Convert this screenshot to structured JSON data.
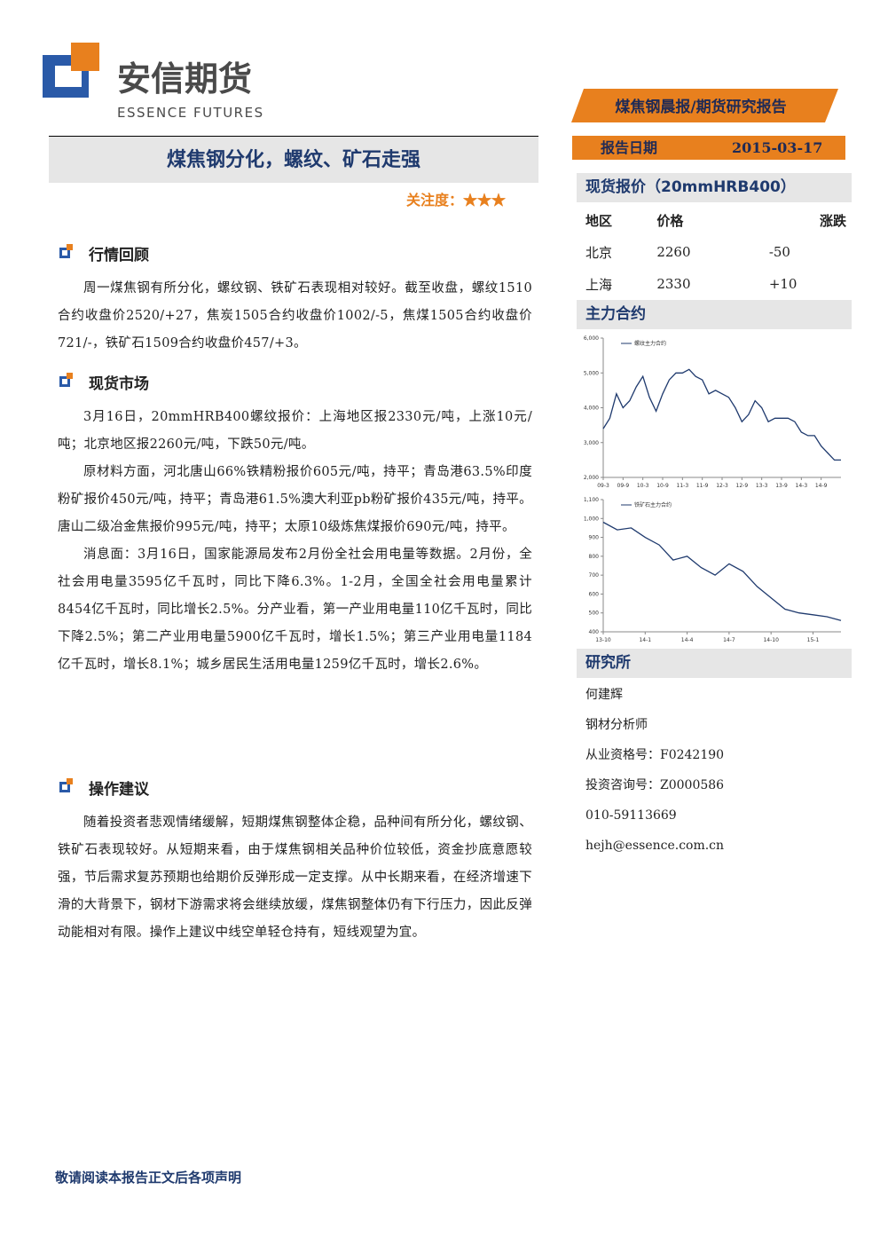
{
  "header": {
    "logo_cn": "安信期货",
    "logo_en": "ESSENCE FUTURES",
    "report_type": "煤焦钢晨报/期货研究报告",
    "date_label": "报告日期",
    "date": "2015-03-17"
  },
  "title": "煤焦钢分化，螺纹、矿石走强",
  "attention": {
    "label": "关注度：",
    "stars": "★★★"
  },
  "sections": [
    {
      "heading": "行情回顾",
      "paragraphs": [
        "周一煤焦钢有所分化，螺纹钢、铁矿石表现相对较好。截至收盘，螺纹1510合约收盘价2520/+27，焦炭1505合约收盘价1002/-5，焦煤1505合约收盘价721/-，铁矿石1509合约收盘价457/+3。"
      ]
    },
    {
      "heading": "现货市场",
      "paragraphs": [
        "3月16日，20mmHRB400螺纹报价：上海地区报2330元/吨，上涨10元/吨；北京地区报2260元/吨，下跌50元/吨。",
        "原材料方面，河北唐山66%铁精粉报价605元/吨，持平；青岛港63.5%印度粉矿报价450元/吨，持平；青岛港61.5%澳大利亚pb粉矿报价435元/吨，持平。唐山二级冶金焦报价995元/吨，持平；太原10级炼焦煤报价690元/吨，持平。",
        "消息面：3月16日，国家能源局发布2月份全社会用电量等数据。2月份，全社会用电量3595亿千瓦时，同比下降6.3%。1-2月，全国全社会用电量累计8454亿千瓦时，同比增长2.5%。分产业看，第一产业用电量110亿千瓦时，同比下降2.5%；第二产业用电量5900亿千瓦时，增长1.5%；第三产业用电量1184亿千瓦时，增长8.1%；城乡居民生活用电量1259亿千瓦时，增长2.6%。"
      ]
    },
    {
      "heading": "操作建议",
      "paragraphs": [
        "随着投资者悲观情绪缓解，短期煤焦钢整体企稳，品种间有所分化，螺纹钢、铁矿石表现较好。从短期来看，由于煤焦钢相关品种价位较低，资金抄底意愿较强，节后需求复苏预期也给期价反弹形成一定支撑。从中长期来看，在经济增速下滑的大背景下，钢材下游需求将会继续放缓，煤焦钢整体仍有下行压力，因此反弹动能相对有限。操作上建议中线空单轻仓持有，短线观望为宜。"
      ]
    }
  ],
  "sidebar": {
    "spot": {
      "title": "现货报价（20mmHRB400）",
      "header": [
        "地区",
        "价格",
        "涨跌"
      ],
      "rows": [
        [
          "北京",
          "2260",
          "-50"
        ],
        [
          "上海",
          "2330",
          "+10"
        ]
      ]
    },
    "main_contract": {
      "title": "主力合约",
      "charts": [
        {
          "type": "line",
          "categories": [
            "09-3",
            null,
            null,
            "09-9",
            null,
            null,
            "10-3",
            null,
            null,
            "10-9",
            null,
            null,
            "11-3",
            null,
            null,
            "11-9",
            null,
            null,
            "12-3",
            null,
            null,
            "12-9",
            null,
            null,
            "13-3",
            null,
            null,
            "13-9",
            null,
            null,
            "14-3",
            null,
            null,
            "14-9",
            null,
            null,
            null
          ],
          "series": [
            {
              "name": "螺纹主力合约",
              "color": "#1f3a6e",
              "values": [
                3400,
                3700,
                4400,
                4000,
                4200,
                4600,
                4900,
                4300,
                3900,
                4400,
                4800,
                5000,
                5000,
                5100,
                4900,
                4800,
                4400,
                4500,
                4400,
                4300,
                4000,
                3600,
                3800,
                4200,
                4000,
                3600,
                3700,
                3700,
                3700,
                3600,
                3300,
                3200,
                3200,
                2900,
                2700,
                2500,
                2500
              ]
            }
          ],
          "ylim": [
            2000,
            6000
          ],
          "yticks": [
            {
              "value": 2000,
              "label": "2,000"
            },
            {
              "value": 3000,
              "label": "3,000"
            },
            {
              "value": 4000,
              "label": "4,000"
            },
            {
              "value": 5000,
              "label": "5,000"
            },
            {
              "value": 6000,
              "label": "6,000"
            }
          ]
        },
        {
          "type": "line",
          "categories": [
            "13-10",
            null,
            null,
            "14-1",
            null,
            null,
            "14-4",
            null,
            null,
            "14-7",
            null,
            null,
            "14-10",
            null,
            null,
            "15-1",
            null,
            null
          ],
          "series": [
            {
              "name": "铁矿石主力合约",
              "color": "#1f3a6e",
              "values": [
                980,
                940,
                950,
                900,
                860,
                780,
                800,
                740,
                700,
                760,
                720,
                640,
                580,
                520,
                500,
                490,
                480,
                460
              ]
            }
          ],
          "ylim": [
            400,
            1100
          ],
          "yticks": [
            400,
            500,
            600,
            700,
            800,
            900,
            {
              "value": 1000,
              "label": "1,000"
            },
            {
              "value": 1100,
              "label": "1,100"
            }
          ]
        }
      ]
    },
    "research": {
      "title": "研究所",
      "lines": [
        "何建辉",
        "钢材分析师",
        "从业资格号：F0242190",
        "投资咨询号：Z0000586",
        "010-59113669",
        "hejh@essence.com.cn"
      ]
    }
  },
  "footer": "敬请阅读本报告正文后各项声明"
}
